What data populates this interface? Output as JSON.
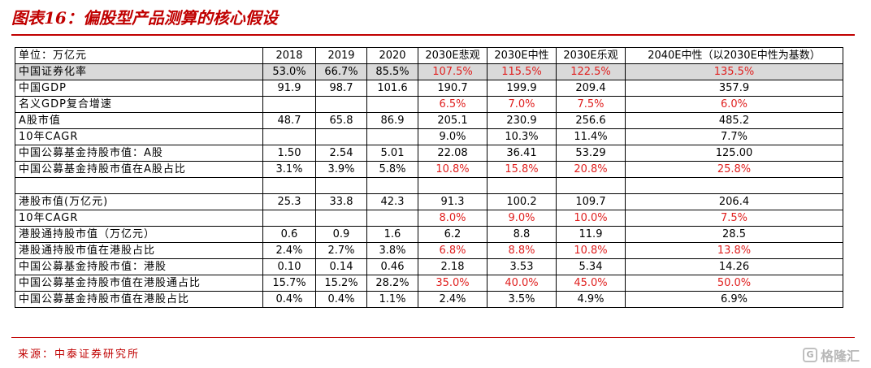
{
  "title": "图表16：偏股型产品测算的核心假设",
  "header": [
    "单位：万亿元",
    "2018",
    "2019",
    "2020",
    "2030E悲观",
    "2030E中性",
    "2030E乐观",
    "2040E中性（以2030E中性为基数）"
  ],
  "rows": [
    {
      "label": "中国证券化率",
      "values": [
        "53.0%",
        "66.7%",
        "85.5%",
        "107.5%",
        "115.5%",
        "122.5%",
        "135.5%"
      ],
      "red": [
        false,
        false,
        false,
        true,
        true,
        true,
        true
      ],
      "shaded": true
    },
    {
      "label": "中国GDP",
      "values": [
        "91.9",
        "98.7",
        "101.6",
        "190.7",
        "199.9",
        "209.4",
        "357.9"
      ],
      "red": [
        false,
        false,
        false,
        false,
        false,
        false,
        false
      ]
    },
    {
      "label": "名义GDP复合增速",
      "values": [
        "",
        "",
        "",
        "6.5%",
        "7.0%",
        "7.5%",
        "6.0%"
      ],
      "red": [
        false,
        false,
        false,
        true,
        true,
        true,
        true
      ]
    },
    {
      "label": "A股市值",
      "values": [
        "48.7",
        "65.8",
        "86.9",
        "205.1",
        "230.9",
        "256.6",
        "485.2"
      ],
      "red": [
        false,
        false,
        false,
        false,
        false,
        false,
        false
      ]
    },
    {
      "label": "10年CAGR",
      "values": [
        "",
        "",
        "",
        "9.0%",
        "10.3%",
        "11.4%",
        "7.7%"
      ],
      "red": [
        false,
        false,
        false,
        false,
        false,
        false,
        false
      ]
    },
    {
      "label": "中国公募基金持股市值：A股",
      "values": [
        "1.50",
        "2.54",
        "5.01",
        "22.08",
        "36.41",
        "53.29",
        "125.00"
      ],
      "red": [
        false,
        false,
        false,
        false,
        false,
        false,
        false
      ]
    },
    {
      "label": "中国公募基金持股市值在A股占比",
      "values": [
        "3.1%",
        "3.9%",
        "5.8%",
        "10.8%",
        "15.8%",
        "20.8%",
        "25.8%"
      ],
      "red": [
        false,
        false,
        false,
        true,
        true,
        true,
        true
      ]
    },
    {
      "label": "",
      "values": [
        "",
        "",
        "",
        "",
        "",
        "",
        ""
      ],
      "red": [
        false,
        false,
        false,
        false,
        false,
        false,
        false
      ]
    },
    {
      "label": "港股市值(万亿元)",
      "values": [
        "25.3",
        "33.8",
        "42.3",
        "91.3",
        "100.2",
        "109.7",
        "206.4"
      ],
      "red": [
        false,
        false,
        false,
        false,
        false,
        false,
        false
      ]
    },
    {
      "label": "10年CAGR",
      "values": [
        "",
        "",
        "",
        "8.0%",
        "9.0%",
        "10.0%",
        "7.5%"
      ],
      "red": [
        false,
        false,
        false,
        true,
        true,
        true,
        true
      ]
    },
    {
      "label": "港股通持股市值（万亿元）",
      "values": [
        "0.6",
        "0.9",
        "1.6",
        "6.2",
        "8.8",
        "11.9",
        "28.5"
      ],
      "red": [
        false,
        false,
        false,
        false,
        false,
        false,
        false
      ]
    },
    {
      "label": "港股通持股市值在港股占比",
      "values": [
        "2.4%",
        "2.7%",
        "3.8%",
        "6.8%",
        "8.8%",
        "10.8%",
        "13.8%"
      ],
      "red": [
        false,
        false,
        false,
        true,
        true,
        true,
        true
      ]
    },
    {
      "label": "中国公募基金持股市值：港股",
      "values": [
        "0.10",
        "0.14",
        "0.46",
        "2.18",
        "3.53",
        "5.34",
        "14.26"
      ],
      "red": [
        false,
        false,
        false,
        false,
        false,
        false,
        false
      ]
    },
    {
      "label": "中国公募基金持股市值在港股通占比",
      "values": [
        "15.7%",
        "15.2%",
        "28.2%",
        "35.0%",
        "40.0%",
        "45.0%",
        "50.0%"
      ],
      "red": [
        false,
        false,
        false,
        true,
        true,
        true,
        true
      ]
    },
    {
      "label": "中国公募基金持股市值在港股占比",
      "values": [
        "0.4%",
        "0.4%",
        "1.1%",
        "2.4%",
        "3.5%",
        "4.9%",
        "6.9%"
      ],
      "red": [
        false,
        false,
        false,
        false,
        false,
        false,
        false
      ]
    }
  ],
  "source": "来源：中泰证券研究所",
  "watermark": {
    "icon": "gelonghui-logo-icon",
    "text": "格隆汇"
  },
  "colors": {
    "title": "#c00000",
    "red_value": "#e0201f",
    "header_peach": "#fbe4d5",
    "header_blue": "#ddeaf5",
    "shaded_row": "#d9d9d9"
  }
}
